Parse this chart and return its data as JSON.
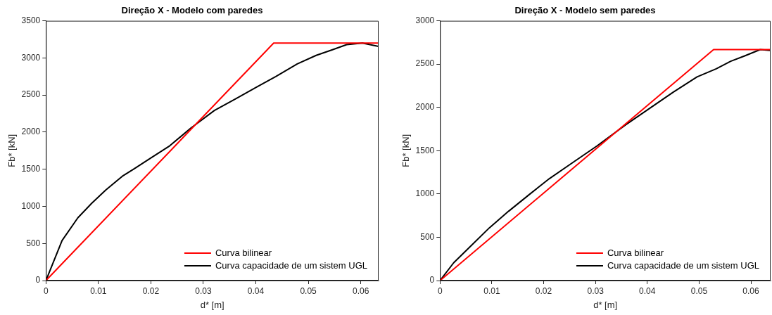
{
  "chart_data": [
    {
      "type": "line",
      "title": "Direção X - Modelo com paredes",
      "xlabel": "d* [m]",
      "ylabel": "Fb* [kN]",
      "xlim": [
        0,
        0.0634
      ],
      "ylim": [
        0,
        3500
      ],
      "xticks": [
        0,
        0.01,
        0.02,
        0.03,
        0.04,
        0.05,
        0.06
      ],
      "yticks": [
        0,
        500,
        1000,
        1500,
        2000,
        2500,
        3000,
        3500
      ],
      "grid": false,
      "legend": "bottom right",
      "marker": "none",
      "line_style": "solid",
      "series": [
        {
          "name": "Curva bilinear",
          "color": "#ff0000",
          "x": [
            0,
            0.0434,
            0.0634
          ],
          "values": [
            0,
            3200,
            3200
          ]
        },
        {
          "name": "Curva capacidade de um sistem UGL",
          "color": "#000000",
          "x": [
            0,
            0.00307,
            0.00608,
            0.0087,
            0.0114,
            0.01455,
            0.0168,
            0.02,
            0.0236,
            0.0276,
            0.0321,
            0.0362,
            0.0402,
            0.0438,
            0.0479,
            0.0515,
            0.0546,
            0.0573,
            0.0603,
            0.0634
          ],
          "values": [
            0,
            539,
            846,
            1040,
            1220,
            1405,
            1506,
            1652,
            1816,
            2054,
            2292,
            2451,
            2609,
            2749,
            2920,
            3034,
            3110,
            3179,
            3200,
            3155
          ]
        }
      ]
    },
    {
      "type": "line",
      "title": "Direção X - Modelo sem paredes",
      "xlabel": "d* [m]",
      "ylabel": "Fb* [kN]",
      "xlim": [
        0,
        0.0638
      ],
      "ylim": [
        0,
        3000
      ],
      "xticks": [
        0,
        0.01,
        0.02,
        0.03,
        0.04,
        0.05,
        0.06
      ],
      "yticks": [
        0,
        500,
        1000,
        1500,
        2000,
        2500,
        3000
      ],
      "grid": false,
      "legend": "bottom right",
      "marker": "none",
      "line_style": "solid",
      "series": [
        {
          "name": "Curva bilinear",
          "color": "#ff0000",
          "x": [
            0,
            0.0528,
            0.0638
          ],
          "values": [
            0,
            2668,
            2668
          ]
        },
        {
          "name": "Curva capacidade de um sistem UGL",
          "color": "#000000",
          "x": [
            0,
            0.00263,
            0.00585,
            0.00954,
            0.0132,
            0.0174,
            0.0211,
            0.0257,
            0.0303,
            0.0358,
            0.0404,
            0.045,
            0.0496,
            0.0533,
            0.0561,
            0.0588,
            0.0618,
            0.0638
          ],
          "values": [
            0,
            205,
            394,
            610,
            799,
            1002,
            1177,
            1366,
            1555,
            1798,
            1987,
            2176,
            2352,
            2446,
            2533,
            2595,
            2668,
            2657
          ]
        }
      ]
    }
  ]
}
